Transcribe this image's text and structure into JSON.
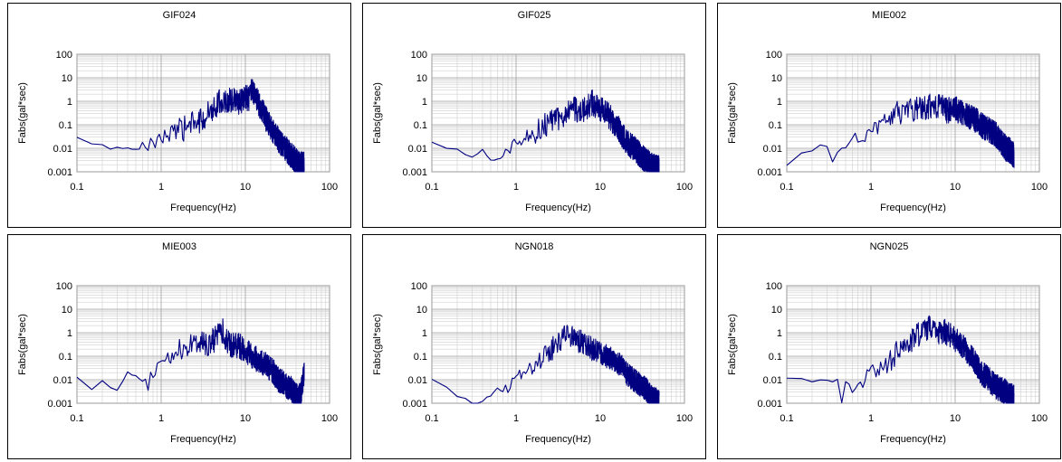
{
  "chart_data": [
    {
      "type": "line",
      "title": "GIF024",
      "xlabel": "Frequency(Hz)",
      "ylabel": "Fabs(gal*sec)",
      "xscale": "log",
      "yscale": "log",
      "xlim": [
        0.1,
        100
      ],
      "ylim": [
        0.001,
        100
      ],
      "x_ticks": [
        "0.1",
        "1",
        "10",
        "100"
      ],
      "y_ticks": [
        "0.001",
        "0.01",
        "0.1",
        "1",
        "10",
        "100"
      ],
      "grid": true,
      "color": "#000080",
      "series": [
        {
          "x": [
            0.1,
            0.3,
            0.4,
            0.5,
            0.6,
            0.7,
            0.8,
            1,
            1.5,
            2,
            3,
            4,
            5,
            6,
            7,
            8,
            9,
            10,
            11,
            12,
            13,
            14,
            16,
            18,
            20,
            25,
            30,
            35,
            40,
            45,
            50
          ],
          "values": [
            0.025,
            0.009,
            0.012,
            0.007,
            0.011,
            0.01,
            0.02,
            0.03,
            0.05,
            0.08,
            0.15,
            0.5,
            1.0,
            0.9,
            1.2,
            0.8,
            1.0,
            1.5,
            1.2,
            3.0,
            2.0,
            1.0,
            0.4,
            0.15,
            0.08,
            0.02,
            0.01,
            0.005,
            0.003,
            0.002,
            0.002
          ],
          "noise": 0.55
        }
      ]
    },
    {
      "type": "line",
      "title": "GIF025",
      "xlabel": "Frequency(Hz)",
      "ylabel": "Fabs(gal*sec)",
      "xscale": "log",
      "yscale": "log",
      "xlim": [
        0.1,
        100
      ],
      "ylim": [
        0.001,
        100
      ],
      "x_ticks": [
        "0.1",
        "1",
        "10",
        "100"
      ],
      "y_ticks": [
        "0.001",
        "0.01",
        "0.1",
        "1",
        "10",
        "100"
      ],
      "grid": true,
      "color": "#000080",
      "series": [
        {
          "x": [
            0.1,
            0.2,
            0.3,
            0.4,
            0.5,
            0.6,
            0.7,
            0.8,
            1,
            1.5,
            2,
            3,
            4,
            5,
            6,
            7,
            8,
            9,
            10,
            12,
            14,
            16,
            18,
            20,
            25,
            30,
            35,
            40,
            45,
            50
          ],
          "values": [
            0.015,
            0.01,
            0.005,
            0.008,
            0.003,
            0.005,
            0.006,
            0.01,
            0.02,
            0.04,
            0.08,
            0.15,
            0.3,
            0.5,
            0.4,
            0.5,
            0.9,
            0.6,
            0.5,
            0.3,
            0.15,
            0.08,
            0.04,
            0.02,
            0.01,
            0.005,
            0.003,
            0.002,
            0.0015,
            0.0015
          ],
          "noise": 0.55
        }
      ]
    },
    {
      "type": "line",
      "title": "MIE002",
      "xlabel": "Frequency(Hz)",
      "ylabel": "Fabs(gal*sec)",
      "xscale": "log",
      "yscale": "log",
      "xlim": [
        0.1,
        100
      ],
      "ylim": [
        0.001,
        100
      ],
      "x_ticks": [
        "0.1",
        "1",
        "10",
        "100"
      ],
      "y_ticks": [
        "0.001",
        "0.01",
        "0.1",
        "1",
        "10",
        "100"
      ],
      "grid": true,
      "color": "#000080",
      "series": [
        {
          "x": [
            0.1,
            0.12,
            0.15,
            0.2,
            0.25,
            0.3,
            0.35,
            0.4,
            0.5,
            0.6,
            0.8,
            1,
            1.5,
            2,
            3,
            4,
            5,
            6,
            7,
            8,
            10,
            12,
            15,
            18,
            20,
            25,
            30,
            35,
            40,
            45,
            50
          ],
          "values": [
            0.0015,
            0.004,
            0.008,
            0.01,
            0.011,
            0.012,
            0.003,
            0.008,
            0.012,
            0.02,
            0.03,
            0.05,
            0.15,
            0.3,
            0.5,
            0.4,
            0.6,
            0.5,
            0.8,
            0.4,
            0.5,
            0.3,
            0.2,
            0.15,
            0.1,
            0.06,
            0.04,
            0.02,
            0.01,
            0.008,
            0.005
          ],
          "noise": 0.55
        }
      ]
    },
    {
      "type": "line",
      "title": "MIE003",
      "xlabel": "Frequency(Hz)",
      "ylabel": "Fabs(gal*sec)",
      "xscale": "log",
      "yscale": "log",
      "xlim": [
        0.1,
        100
      ],
      "ylim": [
        0.001,
        100
      ],
      "x_ticks": [
        "0.1",
        "1",
        "10",
        "100"
      ],
      "y_ticks": [
        "0.001",
        "0.01",
        "0.1",
        "1",
        "10",
        "100"
      ],
      "grid": true,
      "color": "#000080",
      "series": [
        {
          "x": [
            0.1,
            0.15,
            0.2,
            0.25,
            0.3,
            0.35,
            0.4,
            0.5,
            0.6,
            0.7,
            0.8,
            1,
            1.5,
            2,
            3,
            4,
            5,
            5.5,
            6,
            7,
            8,
            10,
            12,
            15,
            18,
            20,
            25,
            30,
            35,
            40,
            45,
            50
          ],
          "values": [
            0.01,
            0.003,
            0.008,
            0.004,
            0.003,
            0.01,
            0.02,
            0.012,
            0.015,
            0.005,
            0.02,
            0.05,
            0.15,
            0.25,
            0.3,
            0.4,
            0.8,
            1.2,
            0.4,
            0.3,
            0.3,
            0.2,
            0.1,
            0.06,
            0.04,
            0.03,
            0.01,
            0.006,
            0.004,
            0.002,
            0.002,
            0.02
          ],
          "noise": 0.55
        }
      ]
    },
    {
      "type": "line",
      "title": "NGN018",
      "xlabel": "Frequency(Hz)",
      "ylabel": "Fabs(gal*sec)",
      "xscale": "log",
      "yscale": "log",
      "xlim": [
        0.1,
        100
      ],
      "ylim": [
        0.001,
        100
      ],
      "x_ticks": [
        "0.1",
        "1",
        "10",
        "100"
      ],
      "y_ticks": [
        "0.001",
        "0.01",
        "0.1",
        "1",
        "10",
        "100"
      ],
      "grid": true,
      "color": "#000080",
      "series": [
        {
          "x": [
            0.1,
            0.15,
            0.2,
            0.3,
            0.35,
            0.4,
            0.5,
            0.6,
            0.8,
            1,
            1.5,
            2,
            3,
            4,
            5,
            6,
            7,
            8,
            10,
            12,
            15,
            18,
            20,
            25,
            30,
            35,
            40,
            45,
            50
          ],
          "values": [
            0.008,
            0.004,
            0.002,
            0.0012,
            0.001,
            0.0015,
            0.002,
            0.004,
            0.005,
            0.01,
            0.03,
            0.08,
            0.3,
            0.9,
            0.5,
            0.4,
            0.3,
            0.2,
            0.15,
            0.1,
            0.06,
            0.04,
            0.02,
            0.01,
            0.006,
            0.004,
            0.002,
            0.0015,
            0.0012
          ],
          "noise": 0.5
        }
      ]
    },
    {
      "type": "line",
      "title": "NGN025",
      "xlabel": "Frequency(Hz)",
      "ylabel": "Fabs(gal*sec)",
      "xscale": "log",
      "yscale": "log",
      "xlim": [
        0.1,
        100
      ],
      "ylim": [
        0.001,
        100
      ],
      "x_ticks": [
        "0.1",
        "1",
        "10",
        "100"
      ],
      "y_ticks": [
        "0.001",
        "0.01",
        "0.1",
        "1",
        "10",
        "100"
      ],
      "grid": true,
      "color": "#000080",
      "series": [
        {
          "x": [
            0.1,
            0.15,
            0.2,
            0.3,
            0.4,
            0.45,
            0.5,
            0.6,
            0.7,
            0.8,
            1,
            1.5,
            2,
            3,
            4,
            5,
            6,
            7,
            8,
            9,
            10,
            12,
            15,
            18,
            20,
            25,
            30,
            35,
            40,
            45,
            50
          ],
          "values": [
            0.015,
            0.01,
            0.01,
            0.01,
            0.01,
            0.001,
            0.01,
            0.006,
            0.01,
            0.01,
            0.02,
            0.05,
            0.15,
            0.5,
            1.0,
            2.0,
            1.0,
            1.2,
            1.0,
            0.8,
            0.5,
            0.3,
            0.1,
            0.05,
            0.02,
            0.01,
            0.005,
            0.004,
            0.003,
            0.002,
            0.002
          ],
          "noise": 0.55
        }
      ]
    }
  ]
}
